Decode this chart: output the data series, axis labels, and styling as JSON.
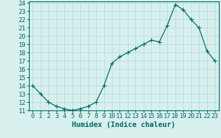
{
  "x": [
    0,
    1,
    2,
    3,
    4,
    5,
    6,
    7,
    8,
    9,
    10,
    11,
    12,
    13,
    14,
    15,
    16,
    17,
    18,
    19,
    20,
    21,
    22,
    23
  ],
  "y": [
    14.0,
    13.0,
    12.0,
    11.5,
    11.2,
    11.0,
    11.2,
    11.5,
    12.0,
    14.0,
    16.7,
    17.5,
    18.0,
    18.5,
    19.0,
    19.5,
    19.3,
    21.3,
    23.8,
    23.2,
    22.0,
    21.0,
    18.2,
    17.0
  ],
  "line_color": "#006666",
  "marker": "+",
  "marker_size": 4,
  "marker_linewidth": 0.8,
  "bg_color": "#d7f0ee",
  "grid_color": "#b0d8d8",
  "xlabel": "Humidex (Indice chaleur)",
  "xlim": [
    -0.5,
    23.5
  ],
  "ylim": [
    11,
    24.2
  ],
  "yticks": [
    11,
    12,
    13,
    14,
    15,
    16,
    17,
    18,
    19,
    20,
    21,
    22,
    23,
    24
  ],
  "xtick_labels": [
    "0",
    "1",
    "2",
    "3",
    "4",
    "5",
    "6",
    "7",
    "8",
    "9",
    "10",
    "11",
    "12",
    "13",
    "14",
    "15",
    "16",
    "17",
    "18",
    "19",
    "20",
    "21",
    "22",
    "23"
  ],
  "tick_color": "#006666",
  "spine_color": "#006666",
  "xlabel_fontsize": 7.5,
  "tick_fontsize": 6.5,
  "linewidth": 0.9
}
